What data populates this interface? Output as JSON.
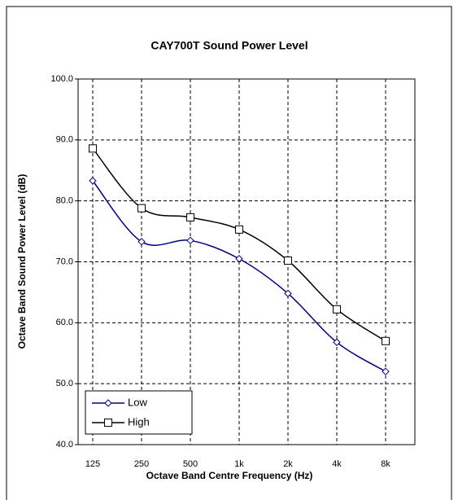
{
  "chart_data": {
    "type": "line",
    "title": "CAY700T Sound Power Level",
    "x_label": "Octave Band Centre Frequency (Hz)",
    "y_label": "Octave Band Sound Power Level (dB)",
    "categories": [
      "125",
      "250",
      "500",
      "1k",
      "2k",
      "4k",
      "8k"
    ],
    "series": [
      {
        "name": "Low",
        "color": "#000080",
        "marker": "diamond",
        "values": [
          83.3,
          73.3,
          73.5,
          70.5,
          64.8,
          56.8,
          52.0
        ]
      },
      {
        "name": "High",
        "color": "#000000",
        "marker": "square",
        "values": [
          88.6,
          78.8,
          77.3,
          75.3,
          70.2,
          62.2,
          57.0
        ]
      }
    ],
    "ylim": [
      40,
      100
    ],
    "yticks": [
      {
        "value": 40,
        "label": "40.0"
      },
      {
        "value": 50,
        "label": "50.0"
      },
      {
        "value": 60,
        "label": "60.0"
      },
      {
        "value": 70,
        "label": "70.0"
      },
      {
        "value": 80,
        "label": "80.0"
      },
      {
        "value": 90,
        "label": "90.0"
      },
      {
        "value": 100,
        "label": "100.0"
      }
    ],
    "grid": true,
    "smooth": true,
    "legend": "bottom-left"
  }
}
